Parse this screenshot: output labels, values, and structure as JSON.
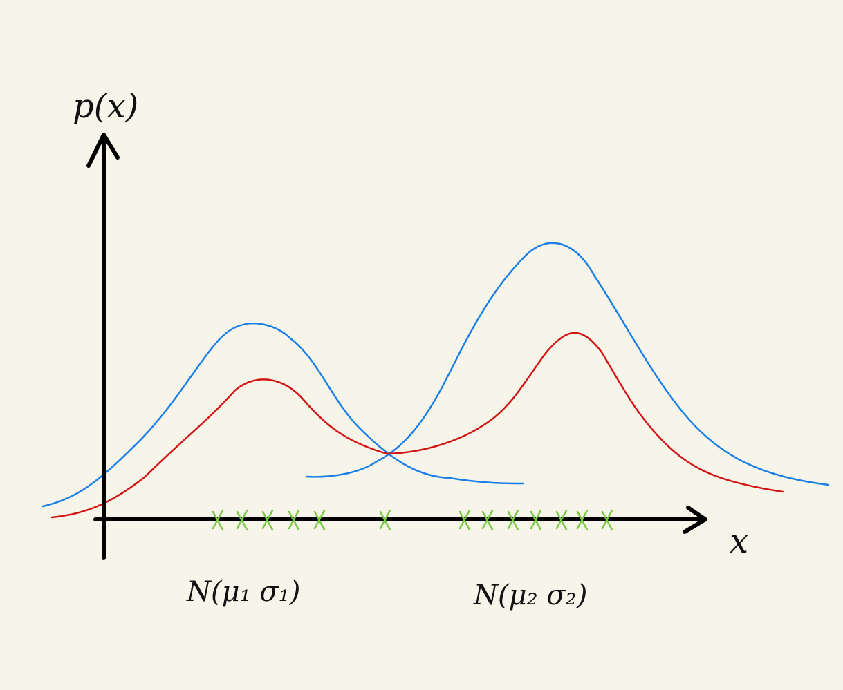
{
  "y_axis_label": "p(x)",
  "x_axis_label": "x",
  "components": [
    {
      "label": "N(μ₁ σ₁)"
    },
    {
      "label": "N(μ₂ σ₂)"
    }
  ]
}
